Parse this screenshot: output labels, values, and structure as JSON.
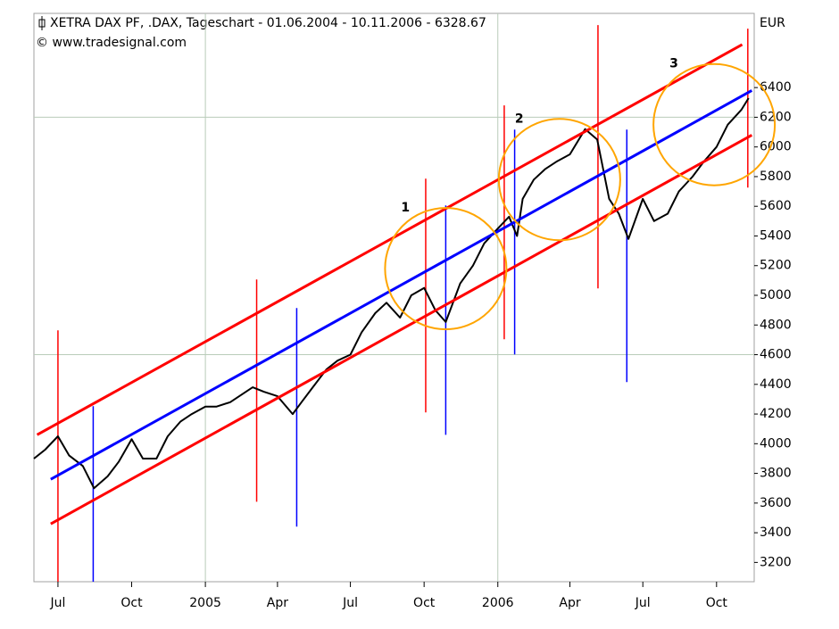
{
  "chart_data": {
    "type": "line",
    "title": "XETRA DAX PF, .DAX, Tageschart - 01.06.2004 - 10.11.2006 - 6328.67",
    "subtitle": "© www.tradesignal.com",
    "y_unit": "EUR",
    "xlim": [
      "2004-06-01",
      "2006-11-17"
    ],
    "ylim": [
      3070,
      6900
    ],
    "yticks": [
      3200,
      3400,
      3600,
      3800,
      4000,
      4200,
      4400,
      4600,
      4800,
      5000,
      5200,
      5400,
      5600,
      5800,
      6000,
      6200,
      6400
    ],
    "xticks": [
      {
        "value": "2004-07-01",
        "label": "Jul"
      },
      {
        "value": "2004-10-01",
        "label": "Oct"
      },
      {
        "value": "2005-01-01",
        "label": "2005"
      },
      {
        "value": "2005-04-01",
        "label": "Apr"
      },
      {
        "value": "2005-07-01",
        "label": "Jul"
      },
      {
        "value": "2005-10-01",
        "label": "Oct"
      },
      {
        "value": "2006-01-01",
        "label": "2006"
      },
      {
        "value": "2006-04-01",
        "label": "Apr"
      },
      {
        "value": "2006-07-01",
        "label": "Jul"
      },
      {
        "value": "2006-10-01",
        "label": "Oct"
      }
    ],
    "grid_x": [
      "2005-01-01",
      "2006-01-01"
    ],
    "grid_y": [
      4600,
      6200
    ],
    "grid_color": "#b9ccb9",
    "series": [
      {
        "name": ".DAX",
        "color": "#000000",
        "x": [
          "2004-06-01",
          "2004-06-15",
          "2004-07-01",
          "2004-07-15",
          "2004-08-01",
          "2004-08-15",
          "2004-09-01",
          "2004-09-15",
          "2004-10-01",
          "2004-10-15",
          "2004-11-01",
          "2004-11-15",
          "2004-12-01",
          "2004-12-15",
          "2005-01-01",
          "2005-01-15",
          "2005-02-01",
          "2005-02-15",
          "2005-03-01",
          "2005-03-15",
          "2005-04-01",
          "2005-04-20",
          "2005-05-01",
          "2005-05-15",
          "2005-06-01",
          "2005-06-15",
          "2005-07-01",
          "2005-07-15",
          "2005-08-01",
          "2005-08-15",
          "2005-09-01",
          "2005-09-15",
          "2005-10-01",
          "2005-10-15",
          "2005-10-28",
          "2005-11-15",
          "2005-12-01",
          "2005-12-15",
          "2006-01-01",
          "2006-01-15",
          "2006-01-25",
          "2006-02-01",
          "2006-02-15",
          "2006-03-01",
          "2006-03-15",
          "2006-04-01",
          "2006-04-20",
          "2006-05-05",
          "2006-05-20",
          "2006-06-01",
          "2006-06-13",
          "2006-07-01",
          "2006-07-15",
          "2006-08-01",
          "2006-08-15",
          "2006-09-01",
          "2006-09-15",
          "2006-10-01",
          "2006-10-15",
          "2006-11-01",
          "2006-11-10"
        ],
        "values": [
          3900,
          3960,
          4050,
          3920,
          3850,
          3700,
          3780,
          3880,
          4030,
          3900,
          3900,
          4050,
          4150,
          4200,
          4250,
          4250,
          4280,
          4330,
          4380,
          4350,
          4320,
          4200,
          4280,
          4380,
          4500,
          4560,
          4600,
          4750,
          4880,
          4950,
          4850,
          5000,
          5050,
          4900,
          4820,
          5080,
          5200,
          5350,
          5450,
          5530,
          5400,
          5650,
          5780,
          5850,
          5900,
          5950,
          6120,
          6050,
          5650,
          5550,
          5380,
          5650,
          5500,
          5550,
          5700,
          5800,
          5900,
          6000,
          6150,
          6250,
          6328.67
        ]
      }
    ],
    "channel_lines": [
      {
        "color": "#ff0000",
        "x": [
          "2004-06-05",
          "2006-11-02"
        ],
        "values": [
          4060,
          6690
        ]
      },
      {
        "color": "#0000ff",
        "x": [
          "2004-06-22",
          "2006-11-14"
        ],
        "values": [
          3760,
          6380
        ]
      },
      {
        "color": "#ff0000",
        "x": [
          "2004-06-22",
          "2006-11-14"
        ],
        "values": [
          3460,
          6080
        ]
      }
    ],
    "vertical_markers": [
      {
        "color": "#ff0000",
        "x": "2004-07-01",
        "values": [
          3070,
          4764
        ]
      },
      {
        "color": "#0000ff",
        "x": "2004-08-14",
        "values": [
          3070,
          4253
        ]
      },
      {
        "color": "#ff0000",
        "x": "2005-03-06",
        "values": [
          3609,
          5107
        ]
      },
      {
        "color": "#0000ff",
        "x": "2005-04-25",
        "values": [
          3441,
          4914
        ]
      },
      {
        "color": "#ff0000",
        "x": "2005-10-03",
        "values": [
          4211,
          5786
        ]
      },
      {
        "color": "#0000ff",
        "x": "2005-10-28",
        "values": [
          4060,
          5606
        ]
      },
      {
        "color": "#ff0000",
        "x": "2006-01-09",
        "values": [
          4704,
          6280
        ]
      },
      {
        "color": "#0000ff",
        "x": "2006-01-22",
        "values": [
          4602,
          6117
        ]
      },
      {
        "color": "#ff0000",
        "x": "2006-05-06",
        "values": [
          5047,
          6821
        ]
      },
      {
        "color": "#0000ff",
        "x": "2006-06-11",
        "values": [
          4415,
          6117
        ]
      },
      {
        "color": "#ff0000",
        "x": "2006-11-09",
        "values": [
          5726,
          6797
        ]
      }
    ],
    "highlights": [
      {
        "label": "1",
        "x": "2005-10-28",
        "value": 5180,
        "color": "#ffa500"
      },
      {
        "label": "2",
        "x": "2006-03-19",
        "value": 5780,
        "color": "#ffa500"
      },
      {
        "label": "3",
        "x": "2006-09-28",
        "value": 6150,
        "color": "#ffa500"
      }
    ]
  }
}
